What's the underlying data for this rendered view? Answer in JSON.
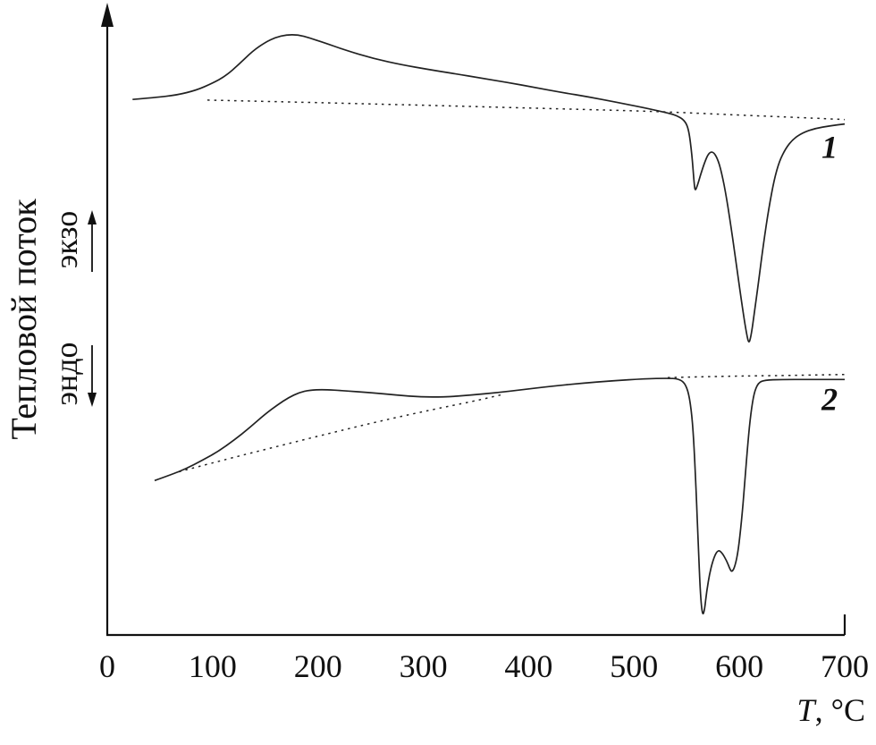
{
  "figure": {
    "background": "#ffffff",
    "ink": "#1a1a1a",
    "curve_color": "#222222"
  },
  "chart_data": {
    "type": "line",
    "title": "",
    "xlabel_italic": "T",
    "xlabel_units": ", °C",
    "ylabel": "Тепловой поток",
    "exo_label": "экзо",
    "endo_label": "эндо",
    "xlim": [
      0,
      700
    ],
    "ylim": [
      0,
      100
    ],
    "y_units": "heat flow, arbitrary units (0–100 of plot height)",
    "x_ticks": [
      0,
      100,
      200,
      300,
      400,
      500,
      600,
      700
    ],
    "grid": false,
    "legend": "none; curves annotated 1 and 2 at right edge",
    "series": [
      {
        "id": "curve-1",
        "name": "1",
        "style": "solid",
        "label_anchor": [
          678,
          76
        ],
        "points": [
          [
            24,
            85.3
          ],
          [
            45,
            85.6
          ],
          [
            66,
            86.0
          ],
          [
            85,
            86.8
          ],
          [
            100,
            87.9
          ],
          [
            112,
            89.0
          ],
          [
            125,
            90.9
          ],
          [
            138,
            93.0
          ],
          [
            150,
            94.4
          ],
          [
            160,
            95.2
          ],
          [
            170,
            95.6
          ],
          [
            181,
            95.6
          ],
          [
            192,
            95.1
          ],
          [
            205,
            94.4
          ],
          [
            225,
            93.2
          ],
          [
            253,
            91.8
          ],
          [
            280,
            90.8
          ],
          [
            304,
            90.1
          ],
          [
            330,
            89.4
          ],
          [
            355,
            88.7
          ],
          [
            380,
            88.0
          ],
          [
            406,
            87.2
          ],
          [
            432,
            86.4
          ],
          [
            457,
            85.7
          ],
          [
            482,
            84.9
          ],
          [
            509,
            84.0
          ],
          [
            528,
            83.3
          ],
          [
            540,
            82.8
          ],
          [
            548,
            82.0
          ],
          [
            552,
            80.5
          ],
          [
            555,
            76.5
          ],
          [
            557,
            72.0
          ],
          [
            558,
            70.7
          ],
          [
            560,
            71.5
          ],
          [
            563,
            73.2
          ],
          [
            567,
            75.3
          ],
          [
            571,
            76.8
          ],
          [
            575,
            77.0
          ],
          [
            579,
            76.0
          ],
          [
            583,
            73.8
          ],
          [
            588,
            69.5
          ],
          [
            593,
            64.0
          ],
          [
            598,
            58.0
          ],
          [
            603,
            52.0
          ],
          [
            607,
            47.8
          ],
          [
            609,
            46.4
          ],
          [
            611,
            47.5
          ],
          [
            614,
            51.0
          ],
          [
            618,
            56.0
          ],
          [
            623,
            62.5
          ],
          [
            628,
            68.0
          ],
          [
            633,
            72.5
          ],
          [
            638,
            75.5
          ],
          [
            644,
            77.5
          ],
          [
            651,
            79.0
          ],
          [
            660,
            80.0
          ],
          [
            672,
            80.7
          ],
          [
            686,
            81.1
          ],
          [
            700,
            81.4
          ]
        ]
      },
      {
        "id": "curve-2",
        "name": "2",
        "style": "solid",
        "label_anchor": [
          678,
          35.8
        ],
        "points": [
          [
            45,
            24.6
          ],
          [
            60,
            25.5
          ],
          [
            75,
            26.5
          ],
          [
            90,
            27.8
          ],
          [
            105,
            29.2
          ],
          [
            120,
            31.0
          ],
          [
            135,
            33.0
          ],
          [
            150,
            35.2
          ],
          [
            162,
            36.7
          ],
          [
            172,
            37.8
          ],
          [
            182,
            38.6
          ],
          [
            192,
            39.0
          ],
          [
            205,
            39.1
          ],
          [
            225,
            38.9
          ],
          [
            250,
            38.6
          ],
          [
            275,
            38.2
          ],
          [
            298,
            37.9
          ],
          [
            320,
            37.9
          ],
          [
            345,
            38.2
          ],
          [
            370,
            38.6
          ],
          [
            395,
            39.1
          ],
          [
            420,
            39.6
          ],
          [
            450,
            40.1
          ],
          [
            480,
            40.5
          ],
          [
            510,
            40.8
          ],
          [
            532,
            40.9
          ],
          [
            542,
            40.8
          ],
          [
            548,
            40.2
          ],
          [
            552,
            38.5
          ],
          [
            555,
            35.0
          ],
          [
            557,
            30.0
          ],
          [
            559,
            23.0
          ],
          [
            561,
            14.0
          ],
          [
            563,
            6.5
          ],
          [
            565,
            3.0
          ],
          [
            567,
            4.0
          ],
          [
            569,
            7.0
          ],
          [
            572,
            10.0
          ],
          [
            576,
            12.5
          ],
          [
            580,
            13.6
          ],
          [
            584,
            13.0
          ],
          [
            588,
            11.8
          ],
          [
            591,
            10.5
          ],
          [
            593,
            10.0
          ],
          [
            596,
            11.0
          ],
          [
            599,
            13.5
          ],
          [
            602,
            18.0
          ],
          [
            605,
            24.0
          ],
          [
            608,
            30.5
          ],
          [
            611,
            35.5
          ],
          [
            614,
            38.6
          ],
          [
            618,
            40.2
          ],
          [
            624,
            40.6
          ],
          [
            640,
            40.7
          ],
          [
            665,
            40.7
          ],
          [
            700,
            40.7
          ]
        ]
      },
      {
        "id": "curve-1-baseline",
        "name": "baseline of curve 1 (dotted)",
        "style": "dotted",
        "points": [
          [
            95,
            85.2
          ],
          [
            200,
            84.8
          ],
          [
            320,
            84.3
          ],
          [
            430,
            83.8
          ],
          [
            520,
            83.4
          ],
          [
            600,
            82.8
          ],
          [
            660,
            82.4
          ],
          [
            700,
            82.1
          ]
        ]
      },
      {
        "id": "curve-2-baseline-left",
        "name": "baseline of curve 2, left segment (dotted)",
        "style": "dotted",
        "points": [
          [
            68,
            26.0
          ],
          [
            120,
            28.3
          ],
          [
            170,
            30.4
          ],
          [
            220,
            32.5
          ],
          [
            270,
            34.5
          ],
          [
            320,
            36.3
          ],
          [
            355,
            37.5
          ],
          [
            375,
            38.3
          ]
        ]
      },
      {
        "id": "curve-2-baseline-right",
        "name": "baseline of curve 2, right segment (dotted)",
        "style": "dotted",
        "points": [
          [
            532,
            41.0
          ],
          [
            580,
            41.2
          ],
          [
            630,
            41.3
          ],
          [
            700,
            41.5
          ]
        ]
      }
    ]
  }
}
